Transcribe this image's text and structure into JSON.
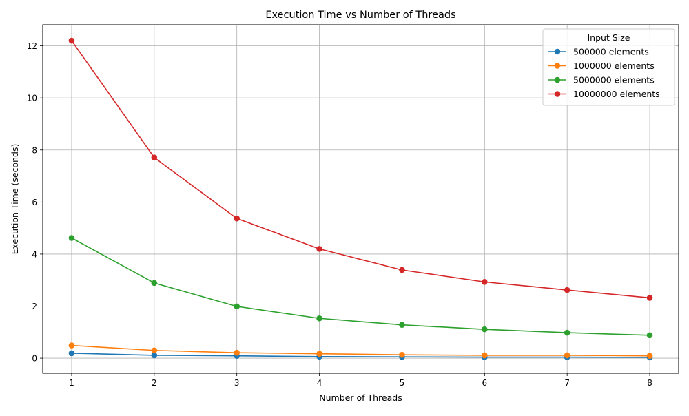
{
  "chart_data": {
    "type": "line",
    "title": "Execution Time vs Number of Threads",
    "xlabel": "Number of Threads",
    "ylabel": "Execution Time (seconds)",
    "x": [
      1,
      2,
      3,
      4,
      5,
      6,
      7,
      8
    ],
    "xlim": [
      0.65,
      8.35
    ],
    "ylim": [
      -0.58,
      12.81
    ],
    "xticks": [
      1,
      2,
      3,
      4,
      5,
      6,
      7,
      8
    ],
    "yticks": [
      0,
      2,
      4,
      6,
      8,
      10,
      12
    ],
    "grid": true,
    "marker": "circle",
    "legend": {
      "title": "Input Size",
      "placement": "top-right"
    },
    "series": [
      {
        "name": "500000 elements",
        "color": "#1f77b4",
        "values": [
          0.19,
          0.11,
          0.09,
          0.06,
          0.05,
          0.04,
          0.04,
          0.03
        ]
      },
      {
        "name": "1000000 elements",
        "color": "#ff7f0e",
        "values": [
          0.49,
          0.3,
          0.21,
          0.17,
          0.13,
          0.11,
          0.11,
          0.09
        ]
      },
      {
        "name": "5000000 elements",
        "color": "#2ca02c",
        "values": [
          4.62,
          2.89,
          1.99,
          1.53,
          1.28,
          1.11,
          0.98,
          0.88
        ]
      },
      {
        "name": "10000000 elements",
        "color": "#d62728",
        "values": [
          12.2,
          7.71,
          5.37,
          4.2,
          3.39,
          2.93,
          2.62,
          2.32
        ]
      }
    ]
  }
}
